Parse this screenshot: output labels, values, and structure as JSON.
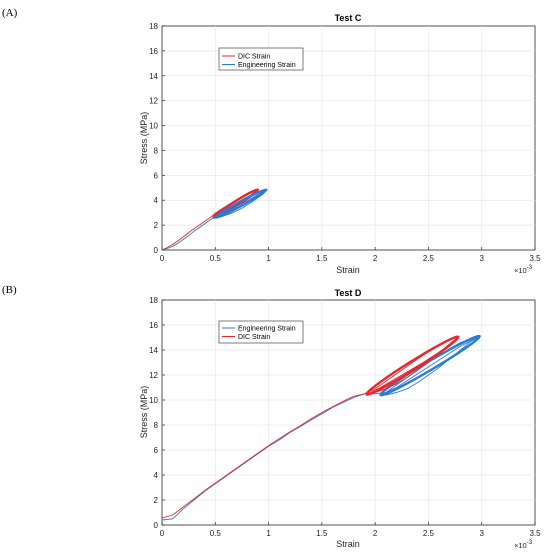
{
  "panels": [
    {
      "label": "(A)"
    },
    {
      "label": "(B)"
    }
  ],
  "chart_data": [
    {
      "type": "line",
      "title": "Test C",
      "xlabel": "Strain",
      "ylabel": "Stress (MPa)",
      "x_multiplier": "×10",
      "x_multiplier_exp": "-3",
      "xlim": [
        0,
        3.5
      ],
      "ylim": [
        0,
        18
      ],
      "xticks": [
        "0",
        "0.5",
        "1",
        "1.5",
        "2",
        "2.5",
        "3",
        "3.5"
      ],
      "yticks": [
        "0",
        "2",
        "4",
        "6",
        "8",
        "10",
        "12",
        "14",
        "16",
        "18"
      ],
      "grid": true,
      "legend_position": "top-left",
      "series": [
        {
          "name": "DIC Strain",
          "color": "#e8262c",
          "points": [
            [
              0,
              0
            ],
            [
              0.05,
              0.2
            ],
            [
              0.1,
              0.45
            ],
            [
              0.15,
              0.75
            ],
            [
              0.2,
              1.05
            ],
            [
              0.25,
              1.4
            ],
            [
              0.3,
              1.7
            ],
            [
              0.35,
              2.0
            ],
            [
              0.4,
              2.3
            ],
            [
              0.45,
              2.6
            ],
            [
              0.5,
              2.95
            ],
            [
              0.55,
              3.25
            ],
            [
              0.6,
              3.5
            ],
            [
              0.65,
              3.75
            ],
            [
              0.7,
              4.0
            ],
            [
              0.75,
              4.25
            ],
            [
              0.8,
              4.45
            ],
            [
              0.85,
              4.65
            ],
            [
              0.9,
              4.85
            ],
            [
              0.88,
              4.6
            ],
            [
              0.8,
              4.15
            ],
            [
              0.7,
              3.6
            ],
            [
              0.6,
              3.05
            ],
            [
              0.52,
              2.7
            ],
            [
              0.48,
              2.6
            ],
            [
              0.52,
              2.9
            ],
            [
              0.6,
              3.3
            ],
            [
              0.7,
              3.75
            ],
            [
              0.8,
              4.2
            ],
            [
              0.9,
              4.85
            ]
          ],
          "loop": {
            "x": [
              0.48,
              0.9
            ],
            "y": [
              2.6,
              4.85
            ]
          }
        },
        {
          "name": "Engineering Strain",
          "color": "#2b7bd6",
          "points": [
            [
              0,
              0
            ],
            [
              0.05,
              0.12
            ],
            [
              0.1,
              0.3
            ],
            [
              0.15,
              0.55
            ],
            [
              0.2,
              0.85
            ],
            [
              0.25,
              1.15
            ],
            [
              0.3,
              1.5
            ],
            [
              0.35,
              1.8
            ],
            [
              0.4,
              2.1
            ],
            [
              0.45,
              2.4
            ],
            [
              0.5,
              2.7
            ],
            [
              0.55,
              2.95
            ],
            [
              0.6,
              3.2
            ],
            [
              0.65,
              3.45
            ],
            [
              0.7,
              3.7
            ],
            [
              0.75,
              3.95
            ],
            [
              0.8,
              4.2
            ],
            [
              0.85,
              4.4
            ],
            [
              0.9,
              4.6
            ],
            [
              0.95,
              4.8
            ],
            [
              0.98,
              4.85
            ],
            [
              0.95,
              4.5
            ],
            [
              0.85,
              3.9
            ],
            [
              0.75,
              3.35
            ],
            [
              0.65,
              2.95
            ],
            [
              0.55,
              2.65
            ],
            [
              0.5,
              2.6
            ],
            [
              0.58,
              2.95
            ],
            [
              0.7,
              3.5
            ],
            [
              0.82,
              4.05
            ],
            [
              0.98,
              4.85
            ]
          ],
          "loop": {
            "x": [
              0.5,
              0.98
            ],
            "y": [
              2.6,
              4.85
            ]
          }
        }
      ]
    },
    {
      "type": "line",
      "title": "Test D",
      "xlabel": "Strain",
      "ylabel": "Stress (MPa)",
      "x_multiplier": "×10",
      "x_multiplier_exp": "-3",
      "xlim": [
        0,
        3.5
      ],
      "ylim": [
        0,
        18
      ],
      "xticks": [
        "0",
        "0.5",
        "1",
        "1.5",
        "2",
        "2.5",
        "3",
        "3.5"
      ],
      "yticks": [
        "0",
        "2",
        "4",
        "6",
        "8",
        "10",
        "12",
        "14",
        "16",
        "18"
      ],
      "grid": true,
      "legend_position": "top-left",
      "series": [
        {
          "name": "Engineering Strain",
          "color": "#2b7bd6",
          "points": [
            [
              0,
              0.4
            ],
            [
              0.1,
              0.5
            ],
            [
              0.2,
              1.3
            ],
            [
              0.3,
              2.0
            ],
            [
              0.4,
              2.7
            ],
            [
              0.5,
              3.3
            ],
            [
              0.6,
              3.9
            ],
            [
              0.7,
              4.5
            ],
            [
              0.8,
              5.1
            ],
            [
              0.9,
              5.7
            ],
            [
              1.0,
              6.3
            ],
            [
              1.1,
              6.8
            ],
            [
              1.2,
              7.4
            ],
            [
              1.3,
              7.9
            ],
            [
              1.4,
              8.4
            ],
            [
              1.5,
              8.9
            ],
            [
              1.6,
              9.4
            ],
            [
              1.7,
              9.8
            ],
            [
              1.8,
              10.2
            ],
            [
              1.9,
              10.5
            ],
            [
              2.0,
              10.5
            ],
            [
              2.1,
              10.6
            ],
            [
              2.2,
              11.2
            ],
            [
              2.3,
              11.8
            ],
            [
              2.4,
              12.4
            ],
            [
              2.5,
              13.0
            ],
            [
              2.6,
              13.6
            ],
            [
              2.7,
              14.1
            ],
            [
              2.8,
              14.6
            ],
            [
              2.9,
              14.9
            ],
            [
              2.98,
              15.1
            ],
            [
              2.9,
              14.7
            ],
            [
              2.8,
              14.0
            ],
            [
              2.7,
              13.3
            ],
            [
              2.6,
              12.6
            ],
            [
              2.5,
              12.0
            ],
            [
              2.4,
              11.4
            ],
            [
              2.3,
              10.9
            ],
            [
              2.2,
              10.6
            ],
            [
              2.1,
              10.4
            ],
            [
              2.05,
              10.4
            ],
            [
              2.2,
              11.0
            ],
            [
              2.4,
              12.1
            ],
            [
              2.6,
              13.2
            ],
            [
              2.8,
              14.3
            ],
            [
              2.98,
              15.1
            ]
          ],
          "loop": {
            "x": [
              2.05,
              2.98
            ],
            "y": [
              10.4,
              15.1
            ]
          }
        },
        {
          "name": "DIC Strain",
          "color": "#e8262c",
          "points": [
            [
              0,
              0.55
            ],
            [
              0.1,
              0.8
            ],
            [
              0.2,
              1.45
            ],
            [
              0.3,
              2.1
            ],
            [
              0.4,
              2.75
            ],
            [
              0.5,
              3.35
            ],
            [
              0.6,
              3.95
            ],
            [
              0.7,
              4.55
            ],
            [
              0.8,
              5.15
            ],
            [
              0.9,
              5.75
            ],
            [
              1.0,
              6.35
            ],
            [
              1.1,
              6.9
            ],
            [
              1.2,
              7.45
            ],
            [
              1.3,
              7.95
            ],
            [
              1.4,
              8.5
            ],
            [
              1.5,
              9.0
            ],
            [
              1.6,
              9.45
            ],
            [
              1.7,
              9.9
            ],
            [
              1.8,
              10.3
            ],
            [
              1.9,
              10.5
            ],
            [
              2.0,
              10.9
            ],
            [
              2.1,
              11.5
            ],
            [
              2.2,
              12.1
            ],
            [
              2.3,
              12.7
            ],
            [
              2.4,
              13.3
            ],
            [
              2.5,
              13.85
            ],
            [
              2.6,
              14.35
            ],
            [
              2.7,
              14.8
            ],
            [
              2.78,
              15.05
            ],
            [
              2.7,
              14.5
            ],
            [
              2.6,
              13.8
            ],
            [
              2.5,
              13.1
            ],
            [
              2.4,
              12.4
            ],
            [
              2.3,
              11.8
            ],
            [
              2.2,
              11.3
            ],
            [
              2.1,
              10.9
            ],
            [
              2.0,
              10.6
            ],
            [
              1.92,
              10.45
            ],
            [
              2.05,
              11.0
            ],
            [
              2.25,
              12.0
            ],
            [
              2.45,
              13.0
            ],
            [
              2.65,
              14.1
            ],
            [
              2.78,
              15.05
            ]
          ],
          "loop": {
            "x": [
              1.92,
              2.78
            ],
            "y": [
              10.45,
              15.05
            ]
          }
        }
      ]
    }
  ]
}
